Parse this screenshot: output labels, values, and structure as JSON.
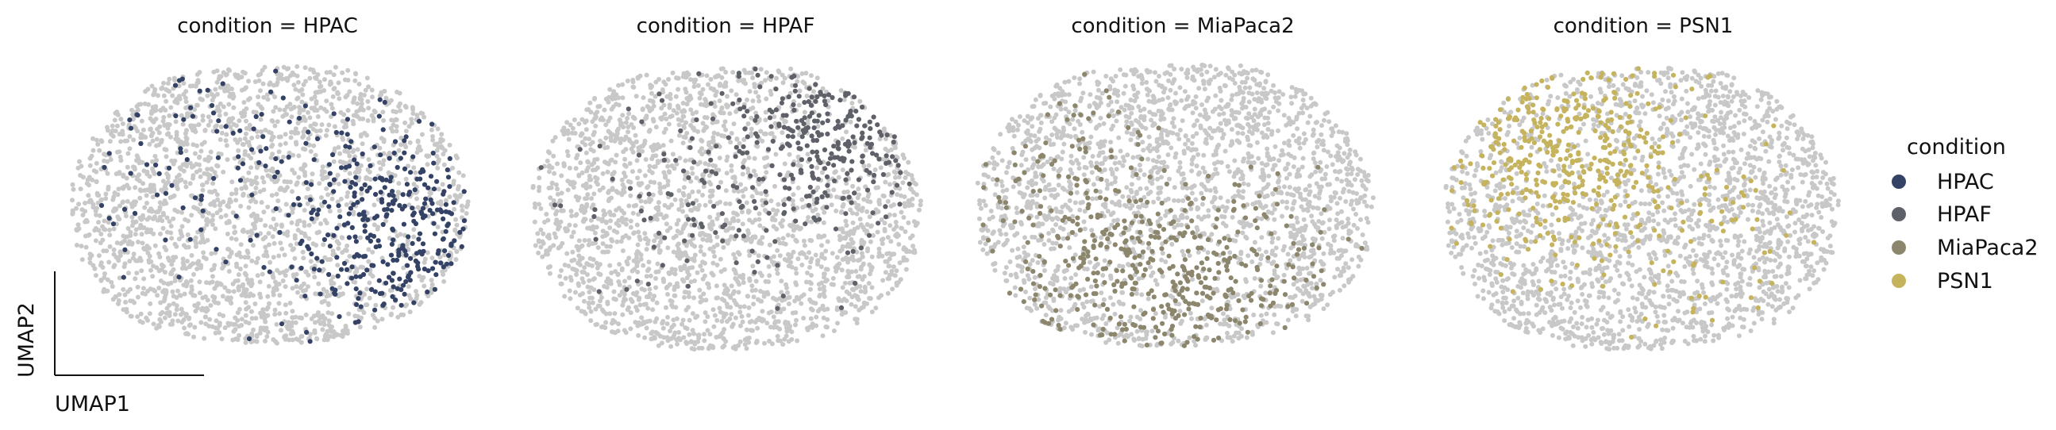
{
  "chart_data": {
    "type": "scatter",
    "background_point_color": "#c8c8c8",
    "axis_labels": {
      "x": "UMAP1",
      "y": "UMAP2"
    },
    "legend": {
      "title": "condition",
      "placement": "right",
      "entries": [
        {
          "name": "HPAC",
          "color": "#344266"
        },
        {
          "name": "HPAF",
          "color": "#5f6169"
        },
        {
          "name": "MiaPaca2",
          "color": "#8c866d"
        },
        {
          "name": "PSN1",
          "color": "#c5b35e"
        }
      ]
    },
    "panels": [
      {
        "title": "condition = HPAC",
        "highlight": "HPAC",
        "region": "right"
      },
      {
        "title": "condition = HPAF",
        "highlight": "HPAF",
        "region": "upper-right"
      },
      {
        "title": "condition = MiaPaca2",
        "highlight": "MiaPaca2",
        "region": "lower-left"
      },
      {
        "title": "condition = PSN1",
        "highlight": "PSN1",
        "region": "upper-left"
      }
    ]
  }
}
